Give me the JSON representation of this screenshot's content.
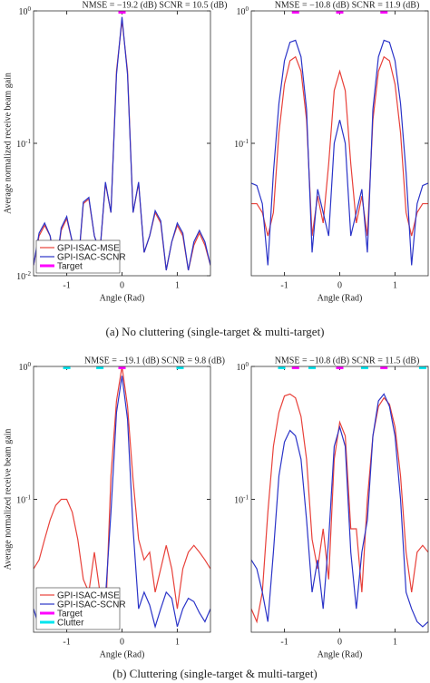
{
  "captions": [
    "(a) No cluttering (single-target & multi-target)",
    "(b) Cluttering (single-target & multi-target)"
  ],
  "chart_data": [
    {
      "type": "line",
      "title": "NMSE = −19.2 (dB) SCNR = 10.5 (dB)",
      "xlabel": "Angle (Rad)",
      "ylabel": "Average normalized receive beam gain",
      "log_y": true,
      "legend": "lower left",
      "xlim": [
        -1.6,
        1.6
      ],
      "xticks": [
        -1,
        0,
        1
      ],
      "ylim": [
        0.01,
        1
      ],
      "yticks": [
        {
          "value": 0.01,
          "label": "10^-2"
        },
        {
          "value": 0.1,
          "label": "10^-1"
        },
        {
          "value": 1,
          "label": "10^0"
        }
      ],
      "x": [
        -1.6,
        -1.5,
        -1.4,
        -1.3,
        -1.2,
        -1.1,
        -1.0,
        -0.9,
        -0.8,
        -0.7,
        -0.6,
        -0.5,
        -0.4,
        -0.3,
        -0.2,
        -0.1,
        0,
        0.1,
        0.2,
        0.3,
        0.4,
        0.5,
        0.6,
        0.7,
        0.8,
        0.9,
        1.0,
        1.1,
        1.2,
        1.3,
        1.4,
        1.5,
        1.6
      ],
      "series": [
        {
          "name": "GPI-ISAC-MSE",
          "color": "#e8413a",
          "values": [
            0.012,
            0.02,
            0.024,
            0.02,
            0.011,
            0.022,
            0.027,
            0.018,
            0.011,
            0.035,
            0.038,
            0.02,
            0.015,
            0.05,
            0.03,
            0.35,
            0.85,
            0.35,
            0.03,
            0.05,
            0.015,
            0.02,
            0.03,
            0.025,
            0.011,
            0.018,
            0.024,
            0.02,
            0.011,
            0.017,
            0.021,
            0.017,
            0.012
          ]
        },
        {
          "name": "GPI-ISAC-SCNR",
          "color": "#2b34c8",
          "values": [
            0.012,
            0.021,
            0.025,
            0.02,
            0.011,
            0.023,
            0.028,
            0.018,
            0.011,
            0.036,
            0.039,
            0.02,
            0.015,
            0.051,
            0.03,
            0.33,
            0.9,
            0.33,
            0.03,
            0.051,
            0.015,
            0.02,
            0.031,
            0.026,
            0.011,
            0.018,
            0.025,
            0.021,
            0.011,
            0.018,
            0.022,
            0.018,
            0.012
          ]
        }
      ],
      "markers": [
        {
          "name": "Target",
          "color": "#ff00ff",
          "x": [
            0
          ]
        }
      ]
    },
    {
      "type": "line",
      "title": "NMSE = −10.8 (dB) SCNR = 11.9 (dB)",
      "xlabel": "Angle (Rad)",
      "log_y": true,
      "xlim": [
        -1.6,
        1.6
      ],
      "xticks": [
        -1,
        0,
        1
      ],
      "ylim": [
        0.01,
        1
      ],
      "yticks": [
        {
          "value": 0.1,
          "label": "10^-1"
        },
        {
          "value": 1,
          "label": "10^0"
        }
      ],
      "x": [
        -1.6,
        -1.5,
        -1.4,
        -1.3,
        -1.2,
        -1.1,
        -1.0,
        -0.9,
        -0.8,
        -0.7,
        -0.6,
        -0.5,
        -0.4,
        -0.3,
        -0.2,
        -0.1,
        0,
        0.1,
        0.2,
        0.3,
        0.4,
        0.5,
        0.6,
        0.7,
        0.8,
        0.9,
        1.0,
        1.1,
        1.2,
        1.3,
        1.4,
        1.5,
        1.6
      ],
      "series": [
        {
          "color": "#e8413a",
          "values": [
            0.035,
            0.035,
            0.03,
            0.02,
            0.03,
            0.12,
            0.28,
            0.42,
            0.45,
            0.35,
            0.15,
            0.02,
            0.04,
            0.025,
            0.07,
            0.25,
            0.35,
            0.25,
            0.07,
            0.025,
            0.04,
            0.02,
            0.15,
            0.35,
            0.45,
            0.42,
            0.28,
            0.12,
            0.03,
            0.02,
            0.03,
            0.035,
            0.035
          ]
        },
        {
          "color": "#2b34c8",
          "values": [
            0.05,
            0.048,
            0.035,
            0.012,
            0.06,
            0.2,
            0.42,
            0.58,
            0.6,
            0.45,
            0.18,
            0.015,
            0.045,
            0.03,
            0.02,
            0.1,
            0.15,
            0.1,
            0.02,
            0.03,
            0.045,
            0.015,
            0.18,
            0.45,
            0.6,
            0.58,
            0.42,
            0.2,
            0.06,
            0.012,
            0.035,
            0.048,
            0.05
          ]
        }
      ],
      "markers": [
        {
          "color": "#ff00ff",
          "x": [
            -0.8,
            0,
            0.8
          ]
        }
      ]
    },
    {
      "type": "line",
      "title": "NMSE = −19.1 (dB) SCNR = 9.8 (dB)",
      "xlabel": "Angle (Rad)",
      "ylabel": "Average normalized receive beam gain",
      "log_y": true,
      "legend": "lower left",
      "xlim": [
        -1.6,
        1.6
      ],
      "xticks": [
        -1,
        0,
        1
      ],
      "ylim": [
        0.01,
        1
      ],
      "yticks": [
        {
          "value": 0.1,
          "label": "10^-1"
        },
        {
          "value": 1,
          "label": "10^0"
        }
      ],
      "x": [
        -1.6,
        -1.5,
        -1.4,
        -1.3,
        -1.2,
        -1.1,
        -1.0,
        -0.9,
        -0.8,
        -0.7,
        -0.6,
        -0.5,
        -0.4,
        -0.3,
        -0.2,
        -0.1,
        0,
        0.1,
        0.2,
        0.3,
        0.4,
        0.5,
        0.6,
        0.7,
        0.8,
        0.9,
        1.0,
        1.1,
        1.2,
        1.3,
        1.4,
        1.5,
        1.6
      ],
      "series": [
        {
          "name": "GPI-ISAC-MSE",
          "color": "#e8413a",
          "values": [
            0.03,
            0.035,
            0.05,
            0.07,
            0.09,
            0.1,
            0.1,
            0.08,
            0.05,
            0.025,
            0.02,
            0.04,
            0.02,
            0.012,
            0.15,
            0.55,
            1.0,
            0.5,
            0.14,
            0.05,
            0.035,
            0.04,
            0.02,
            0.03,
            0.045,
            0.03,
            0.015,
            0.03,
            0.04,
            0.045,
            0.04,
            0.035,
            0.03
          ]
        },
        {
          "name": "GPI-ISAC-SCNR",
          "color": "#2b34c8",
          "values": [
            0.015,
            0.011,
            0.012,
            0.016,
            0.018,
            0.015,
            0.011,
            0.014,
            0.02,
            0.018,
            0.011,
            0.02,
            0.011,
            0.018,
            0.08,
            0.45,
            0.85,
            0.4,
            0.06,
            0.015,
            0.02,
            0.016,
            0.011,
            0.015,
            0.02,
            0.018,
            0.011,
            0.015,
            0.018,
            0.017,
            0.014,
            0.012,
            0.015
          ]
        }
      ],
      "markers": [
        {
          "name": "Target",
          "color": "#ff00ff",
          "x": [
            0
          ]
        },
        {
          "name": "Clutter",
          "color": "#00e5ee",
          "x": [
            -1,
            -0.4,
            1.05
          ]
        }
      ]
    },
    {
      "type": "line",
      "title": "NMSE = −10.8 (dB) SCNR = 11.5 (dB)",
      "xlabel": "Angle (Rad)",
      "log_y": true,
      "xlim": [
        -1.6,
        1.6
      ],
      "xticks": [
        -1,
        0,
        1
      ],
      "ylim": [
        0.01,
        1
      ],
      "yticks": [
        {
          "value": 0.1,
          "label": "10^-1"
        },
        {
          "value": 1,
          "label": "10^0"
        }
      ],
      "x": [
        -1.6,
        -1.5,
        -1.4,
        -1.3,
        -1.2,
        -1.1,
        -1.0,
        -0.9,
        -0.8,
        -0.7,
        -0.6,
        -0.5,
        -0.4,
        -0.3,
        -0.2,
        -0.1,
        0,
        0.1,
        0.2,
        0.3,
        0.4,
        0.5,
        0.6,
        0.7,
        0.8,
        0.9,
        1.0,
        1.1,
        1.2,
        1.3,
        1.4,
        1.5,
        1.6
      ],
      "series": [
        {
          "color": "#e8413a",
          "values": [
            0.015,
            0.012,
            0.02,
            0.08,
            0.25,
            0.45,
            0.6,
            0.62,
            0.58,
            0.42,
            0.2,
            0.05,
            0.03,
            0.06,
            0.025,
            0.2,
            0.38,
            0.3,
            0.06,
            0.06,
            0.02,
            0.1,
            0.3,
            0.5,
            0.58,
            0.52,
            0.35,
            0.15,
            0.04,
            0.02,
            0.04,
            0.045,
            0.04
          ]
        },
        {
          "color": "#2b34c8",
          "values": [
            0.035,
            0.03,
            0.02,
            0.012,
            0.04,
            0.15,
            0.27,
            0.33,
            0.3,
            0.2,
            0.07,
            0.02,
            0.035,
            0.015,
            0.05,
            0.25,
            0.35,
            0.25,
            0.04,
            0.015,
            0.04,
            0.07,
            0.3,
            0.55,
            0.62,
            0.5,
            0.3,
            0.1,
            0.02,
            0.015,
            0.012,
            0.011,
            0.012
          ]
        }
      ],
      "markers": [
        {
          "color": "#ff00ff",
          "x": [
            -0.8,
            0,
            0.8
          ]
        },
        {
          "color": "#00e5ee",
          "x": [
            -1.05,
            -0.5,
            0.45,
            1.5
          ]
        }
      ]
    }
  ]
}
